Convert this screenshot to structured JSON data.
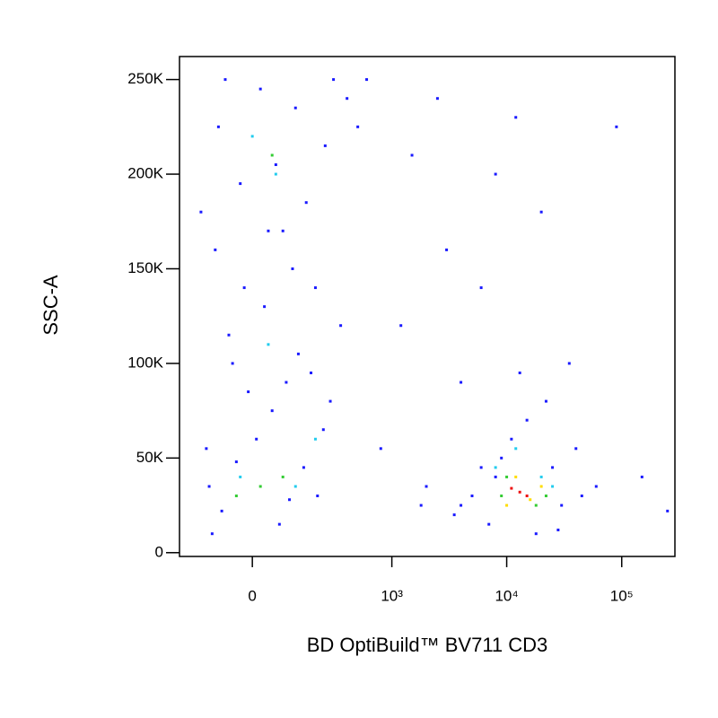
{
  "chart_data": {
    "type": "scatter",
    "x_label": "BD OptiBuild™ BV711 CD3",
    "y_label": "SSC-A",
    "xscale": "biexponential",
    "xlim": [
      -250,
      290000
    ],
    "ylim": [
      -2000,
      262144
    ],
    "xticks": [
      0,
      {
        "value": 1000,
        "label": "10³"
      },
      {
        "value": 10000,
        "label": "10⁴"
      },
      {
        "value": 100000,
        "label": "10⁵"
      }
    ],
    "yticks": [
      0,
      {
        "value": 50000,
        "label": "50K"
      },
      {
        "value": 100000,
        "label": "100K"
      },
      {
        "value": 150000,
        "label": "150K"
      },
      {
        "value": 200000,
        "label": "200K"
      },
      {
        "value": 250000,
        "label": "250K"
      }
    ],
    "series": [
      {
        "color": "#1a1aff",
        "x": [
          -120,
          -80,
          -40,
          10,
          50,
          90,
          130,
          -60,
          30,
          200,
          -100,
          80,
          160,
          -30,
          60,
          250,
          -90,
          120,
          20,
          300,
          400,
          -150,
          180,
          -10,
          240,
          -130,
          100,
          150,
          350,
          500,
          600,
          -70,
          40,
          -20,
          210,
          70,
          -110,
          280,
          -50,
          110,
          1500,
          2500,
          3000,
          1200,
          4000,
          800,
          2000,
          1800,
          3500,
          6000,
          8000,
          12000,
          20000,
          90000,
          150000,
          250000,
          60000,
          5000,
          7000,
          9000,
          11000,
          15000,
          25000,
          30000,
          40000,
          18000,
          6000,
          22000,
          35000,
          8000,
          13000,
          45000,
          4000,
          28000
        ],
        "y": [
          35000,
          22000,
          48000,
          60000,
          75000,
          90000,
          105000,
          115000,
          130000,
          140000,
          160000,
          170000,
          185000,
          195000,
          205000,
          215000,
          225000,
          235000,
          245000,
          250000,
          240000,
          180000,
          95000,
          85000,
          65000,
          55000,
          28000,
          45000,
          120000,
          225000,
          250000,
          250000,
          170000,
          140000,
          30000,
          15000,
          10000,
          80000,
          100000,
          150000,
          210000,
          240000,
          160000,
          120000,
          90000,
          55000,
          35000,
          25000,
          20000,
          140000,
          200000,
          230000,
          180000,
          225000,
          40000,
          22000,
          35000,
          30000,
          15000,
          50000,
          60000,
          70000,
          45000,
          25000,
          55000,
          10000,
          45000,
          80000,
          100000,
          40000,
          95000,
          30000,
          25000,
          12000
        ]
      },
      {
        "color": "#22ccee",
        "x": [
          0,
          60,
          -30,
          120,
          40,
          200,
          8000,
          20000,
          12000,
          25000
        ],
        "y": [
          220000,
          200000,
          40000,
          35000,
          110000,
          60000,
          45000,
          40000,
          55000,
          35000
        ]
      },
      {
        "color": "#33cc33",
        "x": [
          20,
          80,
          -40,
          50,
          10000,
          18000,
          9000,
          22000
        ],
        "y": [
          35000,
          40000,
          30000,
          210000,
          40000,
          25000,
          30000,
          30000
        ]
      },
      {
        "color": "#ffdd00",
        "x": [
          12000,
          16000,
          10000,
          20000
        ],
        "y": [
          40000,
          28000,
          25000,
          35000
        ]
      },
      {
        "color": "#ee1111",
        "x": [
          13000,
          15000,
          11000
        ],
        "y": [
          32000,
          30000,
          34000
        ]
      }
    ]
  }
}
